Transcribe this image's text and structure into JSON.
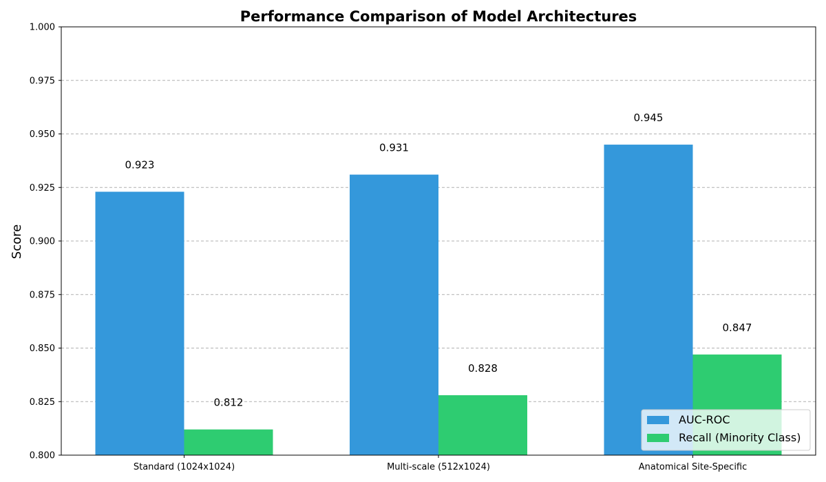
{
  "chart_data": {
    "type": "bar",
    "title": "Performance Comparison of Model Architectures",
    "xlabel": "",
    "ylabel": "Score",
    "categories": [
      "Standard (1024x1024)",
      "Multi-scale (512x1024)",
      "Anatomical Site-Specific"
    ],
    "series": [
      {
        "name": "AUC-ROC",
        "values": [
          0.923,
          0.931,
          0.945
        ],
        "labels": [
          "0.923",
          "0.931",
          "0.945"
        ],
        "color": "#3498db"
      },
      {
        "name": "Recall (Minority Class)",
        "values": [
          0.812,
          0.828,
          0.847
        ],
        "labels": [
          "0.812",
          "0.828",
          "0.847"
        ],
        "color": "#2ecc71"
      }
    ],
    "ylim": [
      0.8,
      1.0
    ],
    "yticks": [
      "0.800",
      "0.825",
      "0.850",
      "0.875",
      "0.900",
      "0.925",
      "0.950",
      "0.975",
      "1.000"
    ],
    "grid": "y-dashed",
    "legend_position": "lower-right"
  }
}
